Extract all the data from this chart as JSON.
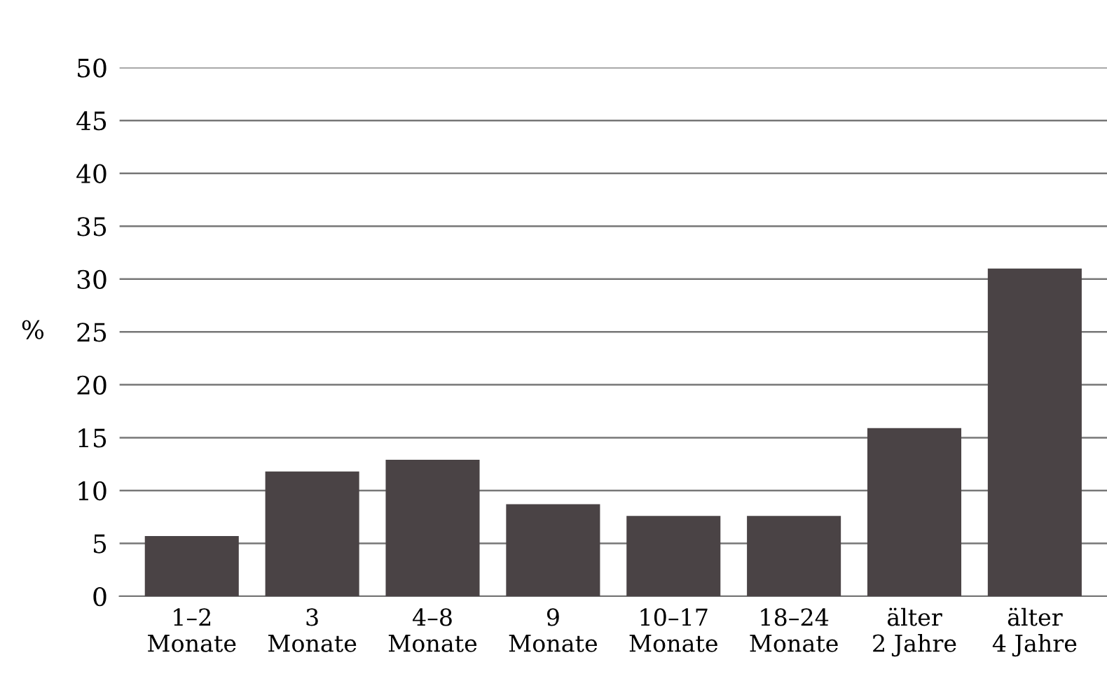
{
  "chart_data": {
    "type": "bar",
    "ylabel": "%",
    "categories": [
      "1–2\nMonate",
      "3\nMonate",
      "4–8\nMonate",
      "9\nMonate",
      "10–17\nMonate",
      "18–24\nMonate",
      "älter\n2 Jahre",
      "älter\n4 Jahre"
    ],
    "values": [
      5.7,
      11.8,
      12.9,
      8.7,
      7.6,
      7.6,
      15.9,
      31.0
    ],
    "color": "#4a4345",
    "ylim": [
      0,
      50
    ],
    "yticks": [
      0,
      5,
      10,
      15,
      20,
      25,
      30,
      35,
      40,
      45,
      50
    ],
    "grid": "y"
  }
}
